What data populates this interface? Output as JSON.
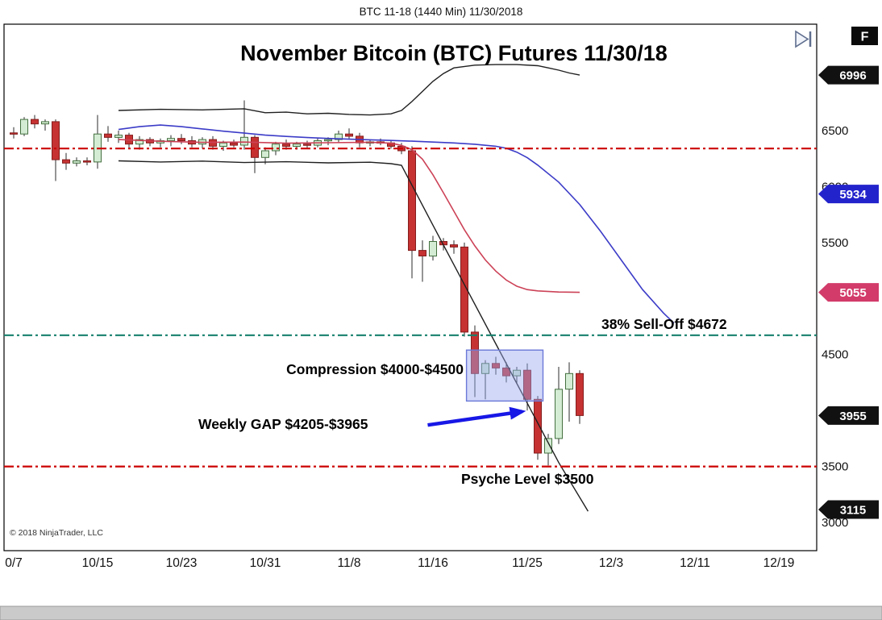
{
  "window": {
    "title_bar": "BTC 11-18 (1440 Min)  11/30/2018",
    "fullscreen_label": "F"
  },
  "chart": {
    "copyright": "© 2018 NinjaTrader, LLC"
  },
  "chart_data": {
    "type": "candlestick",
    "title": "November Bitcoin (BTC) Futures 11/30/18",
    "symbol": "BTC 11-18",
    "interval": "1440 Min",
    "session_date": "11/30/2018",
    "y_axis": {
      "min": 3000,
      "max": 7000,
      "tick_interval": 500,
      "visible_labels": [
        "6500",
        "6000",
        "5500",
        "4500",
        "3500",
        "3000"
      ]
    },
    "x_axis": {
      "ticks": [
        {
          "label": "0/7",
          "day": 0
        },
        {
          "label": "10/15",
          "day": 8
        },
        {
          "label": "10/23",
          "day": 16
        },
        {
          "label": "10/31",
          "day": 24
        },
        {
          "label": "11/8",
          "day": 32
        },
        {
          "label": "11/16",
          "day": 40
        },
        {
          "label": "11/25",
          "day": 49
        },
        {
          "label": "12/3",
          "day": 57
        },
        {
          "label": "12/11",
          "day": 65
        },
        {
          "label": "12/19",
          "day": 73
        }
      ]
    },
    "colors": {
      "up": "#d4ecd4",
      "down": "#c63232",
      "up_border": "#44703f",
      "down_border": "#841d1d"
    },
    "bars": {
      "columns": [
        "date",
        "open",
        "high",
        "low",
        "close"
      ],
      "rows": [
        [
          "10/7",
          6480,
          6530,
          6430,
          6470
        ],
        [
          "10/8",
          6470,
          6620,
          6450,
          6600
        ],
        [
          "10/9",
          6600,
          6640,
          6520,
          6560
        ],
        [
          "10/10",
          6560,
          6600,
          6500,
          6580
        ],
        [
          "10/11",
          6580,
          6600,
          6050,
          6240
        ],
        [
          "10/12",
          6240,
          6300,
          6150,
          6210
        ],
        [
          "10/13",
          6210,
          6260,
          6180,
          6230
        ],
        [
          "10/14",
          6230,
          6260,
          6190,
          6220
        ],
        [
          "10/15",
          6220,
          6640,
          6160,
          6470
        ],
        [
          "10/16",
          6470,
          6540,
          6400,
          6440
        ],
        [
          "10/17",
          6440,
          6500,
          6390,
          6460
        ],
        [
          "10/18",
          6460,
          6480,
          6340,
          6380
        ],
        [
          "10/19",
          6380,
          6450,
          6330,
          6420
        ],
        [
          "10/20",
          6420,
          6440,
          6360,
          6390
        ],
        [
          "10/21",
          6390,
          6430,
          6350,
          6410
        ],
        [
          "10/22",
          6410,
          6460,
          6360,
          6430
        ],
        [
          "10/23",
          6430,
          6470,
          6380,
          6410
        ],
        [
          "10/24",
          6410,
          6450,
          6350,
          6380
        ],
        [
          "10/25",
          6380,
          6440,
          6340,
          6420
        ],
        [
          "10/26",
          6420,
          6450,
          6330,
          6360
        ],
        [
          "10/27",
          6360,
          6410,
          6320,
          6390
        ],
        [
          "10/28",
          6390,
          6420,
          6350,
          6370
        ],
        [
          "10/29",
          6370,
          6770,
          6330,
          6440
        ],
        [
          "10/30",
          6440,
          6460,
          6120,
          6260
        ],
        [
          "10/31",
          6260,
          6350,
          6200,
          6320
        ],
        [
          "11/1",
          6320,
          6400,
          6280,
          6380
        ],
        [
          "11/2",
          6380,
          6420,
          6330,
          6360
        ],
        [
          "11/3",
          6360,
          6400,
          6330,
          6380
        ],
        [
          "11/4",
          6380,
          6410,
          6340,
          6370
        ],
        [
          "11/5",
          6370,
          6430,
          6350,
          6410
        ],
        [
          "11/6",
          6410,
          6440,
          6370,
          6420
        ],
        [
          "11/7",
          6420,
          6500,
          6390,
          6470
        ],
        [
          "11/8",
          6470,
          6520,
          6420,
          6450
        ],
        [
          "11/9",
          6450,
          6480,
          6350,
          6390
        ],
        [
          "11/10",
          6390,
          6420,
          6360,
          6400
        ],
        [
          "11/11",
          6400,
          6430,
          6370,
          6390
        ],
        [
          "11/12",
          6390,
          6410,
          6340,
          6360
        ],
        [
          "11/13",
          6360,
          6390,
          6290,
          6320
        ],
        [
          "11/14",
          6320,
          6360,
          5180,
          5430
        ],
        [
          "11/15",
          5430,
          5520,
          5150,
          5380
        ],
        [
          "11/16",
          5380,
          5560,
          5340,
          5510
        ],
        [
          "11/17",
          5510,
          5540,
          5430,
          5480
        ],
        [
          "11/18",
          5480,
          5520,
          5400,
          5460
        ],
        [
          "11/19",
          5460,
          5500,
          4660,
          4700
        ],
        [
          "11/20",
          4700,
          4760,
          4120,
          4330
        ],
        [
          "11/21",
          4330,
          4450,
          4100,
          4420
        ],
        [
          "11/22",
          4420,
          4480,
          4320,
          4380
        ],
        [
          "11/23",
          4380,
          4430,
          4250,
          4310
        ],
        [
          "11/24",
          4310,
          4390,
          4240,
          4360
        ],
        [
          "11/25",
          4360,
          4420,
          4000,
          4100
        ],
        [
          "11/26",
          4100,
          4130,
          3560,
          3620
        ],
        [
          "11/27",
          3620,
          3790,
          3510,
          3750
        ],
        [
          "11/28",
          3750,
          4390,
          3700,
          4190
        ],
        [
          "11/29",
          4190,
          4430,
          3900,
          4330
        ],
        [
          "11/30",
          4330,
          4360,
          3880,
          3955
        ]
      ]
    },
    "overlays": [
      {
        "name": "upper-band",
        "color": "#1f1f1f",
        "width": 1.4,
        "points": [
          [
            10,
            6680
          ],
          [
            14,
            6690
          ],
          [
            18,
            6685
          ],
          [
            22,
            6695
          ],
          [
            24,
            6660
          ],
          [
            26,
            6665
          ],
          [
            28,
            6650
          ],
          [
            30,
            6655
          ],
          [
            32,
            6645
          ],
          [
            34,
            6640
          ],
          [
            36,
            6650
          ],
          [
            37,
            6680
          ],
          [
            38,
            6760
          ],
          [
            39,
            6850
          ],
          [
            40,
            6940
          ],
          [
            41,
            7010
          ],
          [
            42,
            7060
          ],
          [
            44,
            7085
          ],
          [
            46,
            7090
          ],
          [
            48,
            7090
          ],
          [
            50,
            7080
          ],
          [
            51,
            7060
          ],
          [
            52,
            7040
          ],
          [
            53,
            7015
          ],
          [
            54,
            6996
          ]
        ]
      },
      {
        "name": "lower-band",
        "color": "#1f1f1f",
        "width": 1.4,
        "points": [
          [
            10,
            6230
          ],
          [
            14,
            6220
          ],
          [
            18,
            6228
          ],
          [
            22,
            6215
          ],
          [
            26,
            6222
          ],
          [
            30,
            6212
          ],
          [
            34,
            6218
          ],
          [
            36,
            6205
          ],
          [
            37,
            6190
          ],
          [
            40,
            5655
          ],
          [
            43,
            5125
          ],
          [
            46,
            4595
          ],
          [
            49,
            4065
          ],
          [
            52,
            3535
          ],
          [
            54.8,
            3100
          ]
        ]
      },
      {
        "name": "fast-ma",
        "color": "#cc4257",
        "width": 1.6,
        "points": [
          [
            10,
            6420
          ],
          [
            14,
            6405
          ],
          [
            18,
            6395
          ],
          [
            22,
            6398
          ],
          [
            26,
            6388
          ],
          [
            30,
            6392
          ],
          [
            34,
            6396
          ],
          [
            36,
            6388
          ],
          [
            37,
            6368
          ],
          [
            38,
            6330
          ],
          [
            39,
            6245
          ],
          [
            40,
            6105
          ],
          [
            41,
            5945
          ],
          [
            42,
            5780
          ],
          [
            43,
            5615
          ],
          [
            44,
            5470
          ],
          [
            45,
            5345
          ],
          [
            46,
            5245
          ],
          [
            47,
            5165
          ],
          [
            48,
            5110
          ],
          [
            49,
            5080
          ],
          [
            50,
            5068
          ],
          [
            52,
            5058
          ],
          [
            54,
            5055
          ]
        ]
      },
      {
        "name": "slow-ma",
        "color": "#3c3cc8",
        "width": 1.6,
        "points": [
          [
            10,
            6510
          ],
          [
            12,
            6535
          ],
          [
            14,
            6550
          ],
          [
            16,
            6535
          ],
          [
            18,
            6515
          ],
          [
            20,
            6495
          ],
          [
            22,
            6478
          ],
          [
            24,
            6460
          ],
          [
            26,
            6448
          ],
          [
            28,
            6438
          ],
          [
            30,
            6430
          ],
          [
            32,
            6424
          ],
          [
            34,
            6418
          ],
          [
            36,
            6412
          ],
          [
            38,
            6406
          ],
          [
            40,
            6398
          ],
          [
            42,
            6390
          ],
          [
            44,
            6378
          ],
          [
            46,
            6360
          ],
          [
            47,
            6342
          ],
          [
            48,
            6308
          ],
          [
            49,
            6258
          ],
          [
            50,
            6192
          ],
          [
            52,
            6040
          ],
          [
            54,
            5840
          ],
          [
            56,
            5600
          ],
          [
            58,
            5340
          ],
          [
            60,
            5080
          ],
          [
            62,
            4870
          ],
          [
            63,
            4780
          ]
        ]
      }
    ],
    "hlines": [
      {
        "name": "resistance",
        "price": 6340,
        "color": "#cc0000"
      },
      {
        "name": "selloff-38pct",
        "price": 4672,
        "color": "#17806d"
      },
      {
        "name": "psyche-level",
        "price": 3500,
        "color": "#cc0000"
      }
    ],
    "labels": {
      "selloff": "38% Sell-Off $4672",
      "compression": "Compression $4000-$4500",
      "weekly_gap": "Weekly GAP $4205-$3965",
      "psyche": "Psyche Level $3500"
    },
    "region": {
      "name": "compression-zone",
      "from_day": 43.2,
      "to_day": 50.5,
      "top_price": 4540,
      "bottom_price": 4085,
      "fill": "#9aa8f0",
      "border": "#6b79d8"
    },
    "arrow": {
      "from_day": 39.5,
      "from_price": 3870,
      "to_day": 48.5,
      "to_price": 3990,
      "color": "#1717e6"
    },
    "price_badges": [
      {
        "value": "6996",
        "color": "#111111"
      },
      {
        "value": "5934",
        "color": "#2323cc"
      },
      {
        "value": "5055",
        "color": "#d23b6a"
      },
      {
        "value": "3955",
        "color": "#111111"
      },
      {
        "value": "3115",
        "color": "#111111"
      }
    ]
  }
}
